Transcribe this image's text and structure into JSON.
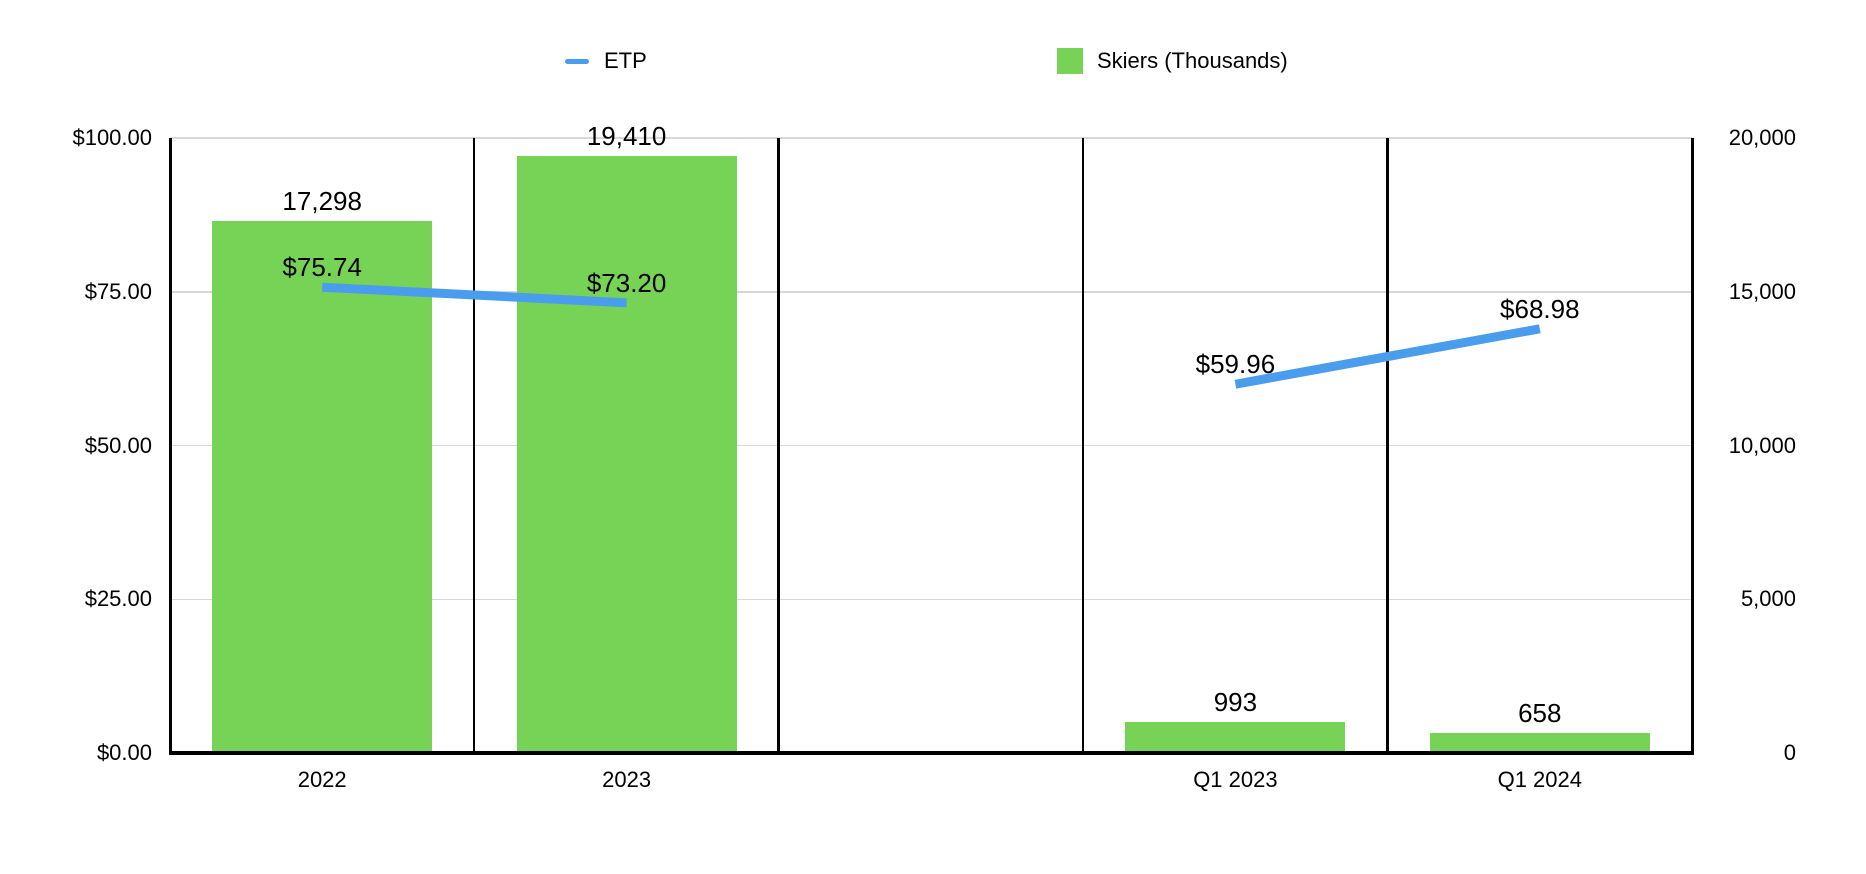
{
  "legend": {
    "etp": {
      "label": "ETP",
      "color": "#4A9CEC"
    },
    "skiers": {
      "label": "Skiers (Thousands)",
      "color": "#77D356"
    }
  },
  "chart_data": {
    "type": "combo-bar-line",
    "title": "",
    "categories": [
      "2022",
      "2023",
      "",
      "Q1 2023",
      "Q1 2024"
    ],
    "series": [
      {
        "name": "ETP",
        "type": "line",
        "axis": "left",
        "color": "#4A9CEC",
        "values": [
          75.74,
          73.2,
          null,
          59.96,
          68.98
        ],
        "labels": [
          "$75.74",
          "$73.20",
          null,
          "$59.96",
          "$68.98"
        ]
      },
      {
        "name": "Skiers (Thousands)",
        "type": "bar",
        "axis": "right",
        "color": "#77D356",
        "values": [
          17298,
          19410,
          null,
          993,
          658
        ],
        "labels": [
          "17,298",
          "19,410",
          null,
          "993",
          "658"
        ]
      }
    ],
    "left_axis": {
      "min": 0,
      "max": 100,
      "tick_values": [
        100,
        75,
        50,
        25,
        0
      ],
      "tick_labels": [
        "$100.00",
        "$75.00",
        "$50.00",
        "$25.00",
        "$0.00"
      ]
    },
    "right_axis": {
      "min": 0,
      "max": 20000,
      "tick_values": [
        20000,
        15000,
        10000,
        5000,
        0
      ],
      "tick_labels": [
        "20,000",
        "15,000",
        "10,000",
        "5,000",
        "0"
      ]
    },
    "grid": true,
    "legend_position": "top",
    "gridline_color": "#D8D8D8",
    "background": "#FFFFFF"
  }
}
